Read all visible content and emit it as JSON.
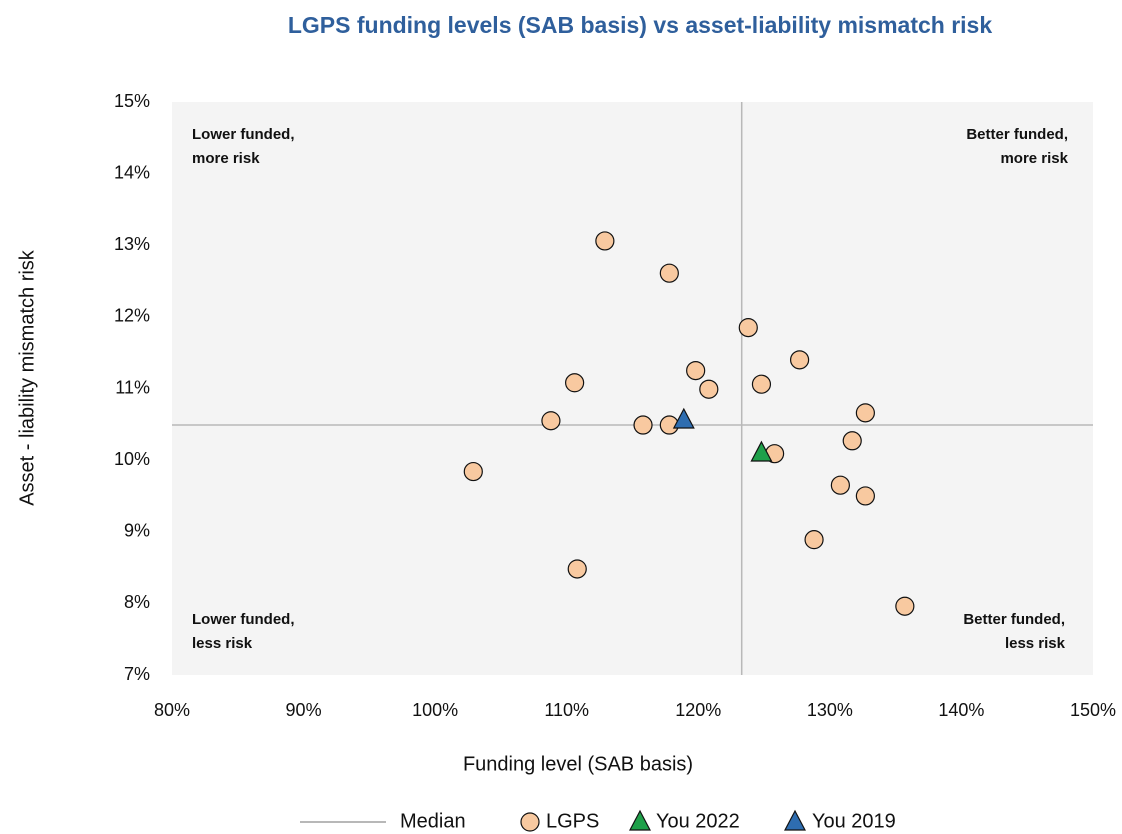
{
  "chart_data": {
    "type": "scatter",
    "title": "LGPS funding levels (SAB basis) vs asset-liability mismatch risk",
    "x_label": "Funding level (SAB basis)",
    "y_label": "Asset - liability mismatch risk",
    "xlim": [
      80,
      150
    ],
    "ylim": [
      7,
      15
    ],
    "xticks": [
      {
        "value": 80,
        "label": "80%"
      },
      {
        "value": 90,
        "label": "90%"
      },
      {
        "value": 100,
        "label": "100%"
      },
      {
        "value": 110,
        "label": "110%"
      },
      {
        "value": 120,
        "label": "120%"
      },
      {
        "value": 130,
        "label": "130%"
      },
      {
        "value": 140,
        "label": "140%"
      },
      {
        "value": 150,
        "label": "150%"
      }
    ],
    "yticks": [
      {
        "value": 7,
        "label": "7%"
      },
      {
        "value": 8,
        "label": "8%"
      },
      {
        "value": 9,
        "label": "9%"
      },
      {
        "value": 10,
        "label": "10%"
      },
      {
        "value": 11,
        "label": "11%"
      },
      {
        "value": 12,
        "label": "12%"
      },
      {
        "value": 13,
        "label": "13%"
      },
      {
        "value": 14,
        "label": "14%"
      },
      {
        "value": 15,
        "label": "15%"
      }
    ],
    "median": {
      "name": "Median",
      "color": "#b8b8b8",
      "x": 123.3,
      "y": 10.49
    },
    "series": [
      {
        "name": "LGPS",
        "marker": "circle",
        "color": "#f8c9a0",
        "x": [
          112.9,
          117.8,
          123.8,
          127.7,
          119.8,
          110.6,
          120.8,
          124.8,
          132.7,
          108.8,
          115.8,
          117.8,
          131.7,
          125.8,
          102.9,
          130.8,
          132.7,
          128.8,
          110.8,
          135.7
        ],
        "values": [
          13.06,
          12.61,
          11.85,
          11.4,
          11.25,
          11.08,
          10.99,
          11.06,
          10.66,
          10.55,
          10.49,
          10.49,
          10.27,
          10.09,
          9.84,
          9.65,
          9.5,
          8.89,
          8.48,
          7.96
        ]
      },
      {
        "name": "You 2022",
        "marker": "triangle",
        "color": "#1fa04a",
        "x": [
          124.8
        ],
        "values": [
          10.1
        ]
      },
      {
        "name": "You 2019",
        "marker": "triangle",
        "color": "#2e6db0",
        "x": [
          118.9
        ],
        "values": [
          10.56
        ]
      }
    ],
    "annotations": [
      {
        "corner": "top-left",
        "lines": [
          "Lower funded,",
          "more risk"
        ]
      },
      {
        "corner": "top-right",
        "lines": [
          "Better funded,",
          "more risk"
        ]
      },
      {
        "corner": "bottom-left",
        "lines": [
          "Lower funded,",
          "less risk"
        ]
      },
      {
        "corner": "bottom-right",
        "lines": [
          "Better funded,",
          "less risk"
        ]
      }
    ]
  }
}
